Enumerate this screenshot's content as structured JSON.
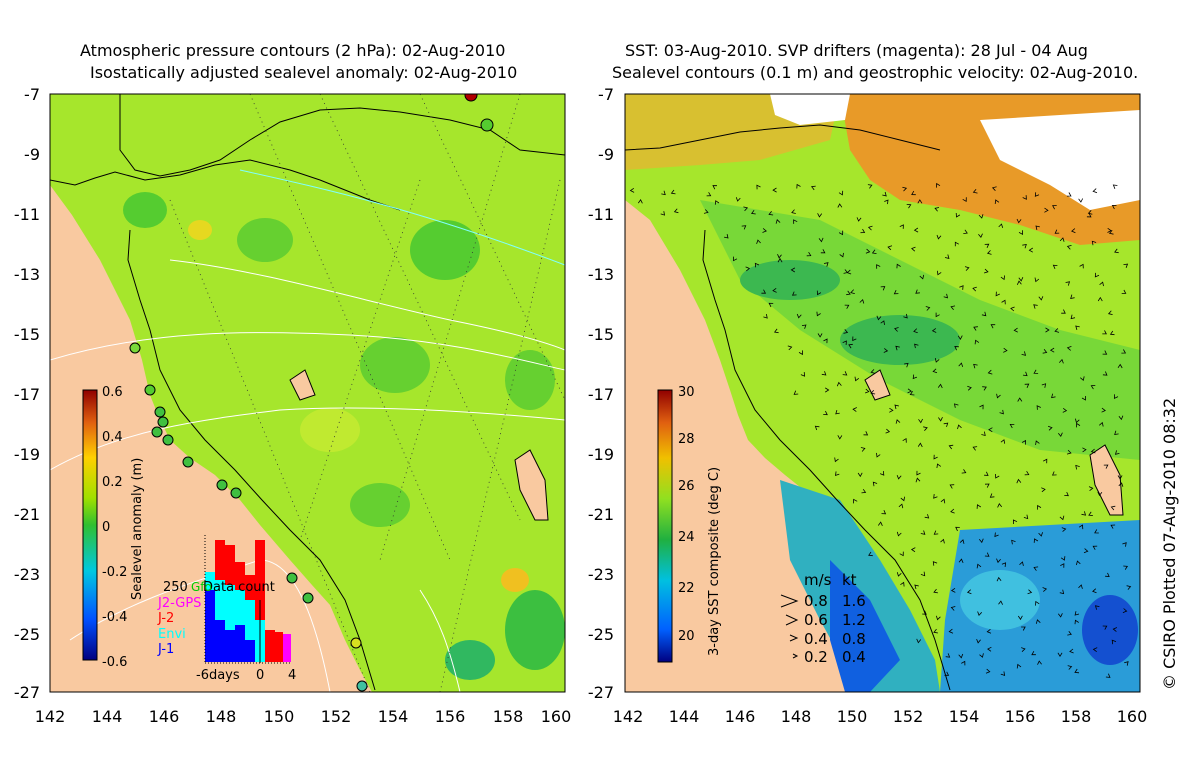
{
  "left_panel": {
    "title_line1": "Atmospheric pressure contours (2 hPa): 02-Aug-2010",
    "title_line2": "Isostatically adjusted sealevel anomaly: 02-Aug-2010",
    "x_ticks": [
      "142",
      "144",
      "146",
      "148",
      "150",
      "152",
      "154",
      "156",
      "158",
      "160"
    ],
    "y_ticks": [
      "-7",
      "-9",
      "-11",
      "-13",
      "-15",
      "-17",
      "-19",
      "-21",
      "-23",
      "-25",
      "-27"
    ],
    "colorbar": {
      "label": "Sealevel anomaly (m)",
      "ticks": [
        "0.6",
        "0.4",
        "0.2",
        "0",
        "-0.2",
        "-0.4",
        "-0.6"
      ]
    },
    "data_count": {
      "title": "Data count",
      "max_label": "250",
      "legend": [
        {
          "name": "Gfo",
          "color": "#00cc00"
        },
        {
          "name": "J2-GPS",
          "color": "#ff00ff"
        },
        {
          "name": "J-2",
          "color": "#ff0000"
        },
        {
          "name": "Envi",
          "color": "#00ffff"
        },
        {
          "name": "J-1",
          "color": "#0000ff"
        }
      ],
      "xlabels": [
        "-6days",
        "0",
        "4"
      ]
    }
  },
  "right_panel": {
    "title_line1": "SST: 03-Aug-2010. SVP drifters (magenta): 28 Jul - 04 Aug",
    "title_line2": "Sealevel contours (0.1 m) and geostrophic velocity: 02-Aug-2010.",
    "x_ticks": [
      "142",
      "144",
      "146",
      "148",
      "150",
      "152",
      "154",
      "156",
      "158",
      "160"
    ],
    "y_ticks": [
      "-7",
      "-9",
      "-11",
      "-13",
      "-15",
      "-17",
      "-19",
      "-21",
      "-23",
      "-25",
      "-27"
    ],
    "colorbar": {
      "label": "3-day SST composite (deg C)",
      "ticks": [
        "30",
        "28",
        "26",
        "24",
        "22",
        "20"
      ]
    },
    "velocity_legend": {
      "header_ms": "m/s",
      "header_kt": "kt",
      "rows": [
        {
          "ms": "0.8",
          "kt": "1.6"
        },
        {
          "ms": "0.6",
          "kt": "1.2"
        },
        {
          "ms": "0.4",
          "kt": "0.8"
        },
        {
          "ms": "0.2",
          "kt": "0.4"
        }
      ]
    }
  },
  "copyright": "© CSIRO Plotted 07-Aug-2010 08:32",
  "colors": {
    "land": "#f9c9a0",
    "ocean_green": "#a6e62c",
    "deep_green": "#55cc30",
    "sst_blue": "#2a9cd8",
    "sst_orange": "#e89a28"
  }
}
